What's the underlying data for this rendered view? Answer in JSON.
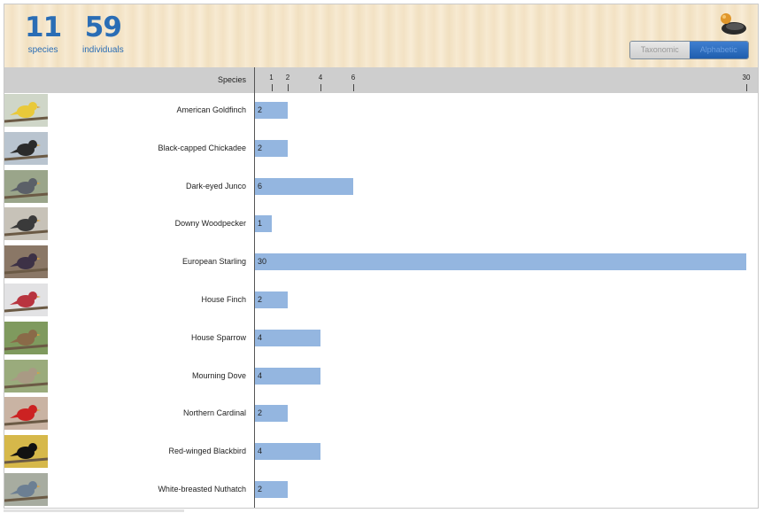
{
  "stats": {
    "species_count": "11",
    "species_label": "species",
    "individuals_count": "59",
    "individuals_label": "individuals"
  },
  "toggle": {
    "taxonomic_label": "Taxonomic",
    "alphabetic_label": "Alphabetic",
    "selected": "Alphabetic"
  },
  "column_header": "Species",
  "axis": {
    "ticks": [
      "1",
      "2",
      "4",
      "6",
      "30"
    ],
    "max": 30
  },
  "colors": {
    "accent": "#2a6db5",
    "bar": "#94b6e0",
    "header_band": "#cecece"
  },
  "chart_data": {
    "type": "bar",
    "categories": [
      "American Goldfinch",
      "Black-capped Chickadee",
      "Dark-eyed Junco",
      "Downy Woodpecker",
      "European Starling",
      "House Finch",
      "House Sparrow",
      "Mourning Dove",
      "Northern Cardinal",
      "Red-winged Blackbird",
      "White-breasted Nuthatch"
    ],
    "values": [
      2,
      2,
      6,
      1,
      30,
      2,
      4,
      4,
      2,
      4,
      2
    ],
    "ylabel": "Species",
    "xlim": [
      0,
      30
    ]
  },
  "species": [
    {
      "name": "American Goldfinch",
      "count": "2",
      "value": 2,
      "thumb": "goldfinch"
    },
    {
      "name": "Black-capped Chickadee",
      "count": "2",
      "value": 2,
      "thumb": "chickadee"
    },
    {
      "name": "Dark-eyed Junco",
      "count": "6",
      "value": 6,
      "thumb": "junco"
    },
    {
      "name": "Downy Woodpecker",
      "count": "1",
      "value": 1,
      "thumb": "woodpecker"
    },
    {
      "name": "European Starling",
      "count": "30",
      "value": 30,
      "thumb": "starling"
    },
    {
      "name": "House Finch",
      "count": "2",
      "value": 2,
      "thumb": "finch"
    },
    {
      "name": "House Sparrow",
      "count": "4",
      "value": 4,
      "thumb": "sparrow"
    },
    {
      "name": "Mourning Dove",
      "count": "4",
      "value": 4,
      "thumb": "dove"
    },
    {
      "name": "Northern Cardinal",
      "count": "2",
      "value": 2,
      "thumb": "cardinal"
    },
    {
      "name": "Red-winged Blackbird",
      "count": "4",
      "value": 4,
      "thumb": "blackbird"
    },
    {
      "name": "White-breasted Nuthatch",
      "count": "2",
      "value": 2,
      "thumb": "nuthatch"
    }
  ]
}
